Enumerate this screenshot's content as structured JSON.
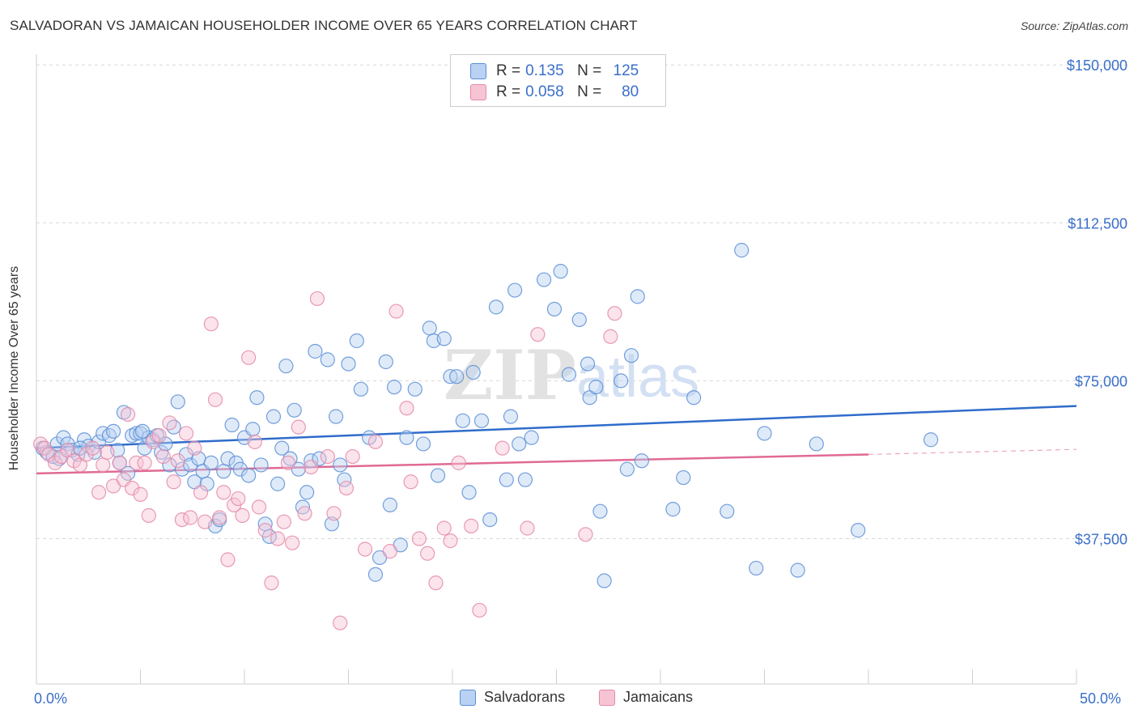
{
  "title": "SALVADORAN VS JAMAICAN HOUSEHOLDER INCOME OVER 65 YEARS CORRELATION CHART",
  "source": "Source: ZipAtlas.com",
  "watermark": {
    "zip": "ZIP",
    "atlas": "atlas"
  },
  "legend": {
    "rows": [
      {
        "r_label": "R =",
        "r_value": "0.135",
        "n_label": "N =",
        "n_value": "125"
      },
      {
        "r_label": "R =",
        "r_value": "0.058",
        "n_label": "N =",
        "n_value": "80"
      }
    ],
    "bottom": [
      "Salvadorans",
      "Jamaicans"
    ]
  },
  "colors": {
    "blue_fill": "#b9d1f2",
    "blue_stroke": "#5b8fd6",
    "blue_line": "#2f6ccb",
    "pink_fill": "#f7c4d4",
    "pink_stroke": "#e48aa8",
    "pink_line": "#e06a95",
    "axis_text": "#3a6fc9",
    "grid": "#d8d8d8"
  },
  "chart_data": {
    "type": "scatter",
    "title": "SALVADORAN VS JAMAICAN HOUSEHOLDER INCOME OVER 65 YEARS CORRELATION CHART",
    "xlabel": "",
    "ylabel": "Householder Income Over 65 years",
    "xlim": [
      0,
      50
    ],
    "ylim": [
      3000,
      153500
    ],
    "x_tick_labels": [
      "0.0%",
      "50.0%"
    ],
    "y_ticks": [
      37500,
      75000,
      112500,
      150000
    ],
    "y_tick_labels": [
      "$37,500",
      "$75,000",
      "$112,500",
      "$150,000"
    ],
    "grid": true,
    "series": [
      {
        "name": "Salvadorans",
        "r": 0.135,
        "n": 125,
        "trend": {
          "x": [
            0,
            50
          ],
          "y": [
            59000,
            69000
          ]
        },
        "points": [
          [
            0.3,
            59000
          ],
          [
            0.5,
            58000
          ],
          [
            0.8,
            57000
          ],
          [
            1.0,
            60000
          ],
          [
            1.3,
            61500
          ],
          [
            1.5,
            60000
          ],
          [
            1.7,
            58500
          ],
          [
            2.0,
            57500
          ],
          [
            2.3,
            61000
          ],
          [
            2.5,
            59500
          ],
          [
            2.8,
            58000
          ],
          [
            3.0,
            60500
          ],
          [
            3.2,
            62500
          ],
          [
            3.5,
            62000
          ],
          [
            3.7,
            63000
          ],
          [
            4.0,
            55500
          ],
          [
            4.2,
            67500
          ],
          [
            4.4,
            53000
          ],
          [
            4.6,
            62000
          ],
          [
            4.8,
            62500
          ],
          [
            5.0,
            62500
          ],
          [
            5.2,
            59000
          ],
          [
            5.4,
            61500
          ],
          [
            5.6,
            61000
          ],
          [
            5.8,
            62000
          ],
          [
            6.0,
            58000
          ],
          [
            6.2,
            60000
          ],
          [
            6.4,
            55000
          ],
          [
            6.6,
            64000
          ],
          [
            6.8,
            70000
          ],
          [
            7.0,
            54000
          ],
          [
            7.2,
            57500
          ],
          [
            7.4,
            55000
          ],
          [
            7.6,
            51000
          ],
          [
            7.8,
            56500
          ],
          [
            8.0,
            53500
          ],
          [
            8.2,
            50500
          ],
          [
            8.4,
            55500
          ],
          [
            8.6,
            40500
          ],
          [
            8.8,
            42000
          ],
          [
            9.0,
            53500
          ],
          [
            9.2,
            56500
          ],
          [
            9.4,
            64500
          ],
          [
            9.6,
            55500
          ],
          [
            9.8,
            54000
          ],
          [
            10.0,
            61500
          ],
          [
            10.2,
            52500
          ],
          [
            10.4,
            63500
          ],
          [
            10.6,
            71000
          ],
          [
            10.8,
            55000
          ],
          [
            11.0,
            41000
          ],
          [
            11.2,
            38000
          ],
          [
            11.4,
            66500
          ],
          [
            11.6,
            50500
          ],
          [
            11.8,
            59000
          ],
          [
            12.0,
            78500
          ],
          [
            12.2,
            56500
          ],
          [
            12.4,
            68000
          ],
          [
            12.6,
            54000
          ],
          [
            12.8,
            45000
          ],
          [
            13.0,
            48500
          ],
          [
            13.2,
            56000
          ],
          [
            13.4,
            82000
          ],
          [
            13.6,
            56500
          ],
          [
            14.0,
            80000
          ],
          [
            14.2,
            41000
          ],
          [
            14.4,
            66500
          ],
          [
            14.6,
            55000
          ],
          [
            14.8,
            51500
          ],
          [
            15.0,
            79000
          ],
          [
            15.4,
            84500
          ],
          [
            15.6,
            73000
          ],
          [
            16.0,
            61500
          ],
          [
            16.3,
            29000
          ],
          [
            16.5,
            33000
          ],
          [
            16.8,
            79500
          ],
          [
            17.0,
            45500
          ],
          [
            17.2,
            73500
          ],
          [
            17.5,
            36000
          ],
          [
            17.8,
            61500
          ],
          [
            18.2,
            73000
          ],
          [
            18.6,
            60000
          ],
          [
            18.9,
            87500
          ],
          [
            19.1,
            84500
          ],
          [
            19.3,
            52500
          ],
          [
            19.6,
            85000
          ],
          [
            19.9,
            76000
          ],
          [
            20.2,
            76000
          ],
          [
            20.5,
            65500
          ],
          [
            20.8,
            48500
          ],
          [
            21.0,
            77000
          ],
          [
            21.4,
            65500
          ],
          [
            21.8,
            42000
          ],
          [
            22.1,
            92500
          ],
          [
            22.6,
            51500
          ],
          [
            22.8,
            66500
          ],
          [
            23.0,
            96500
          ],
          [
            23.2,
            60000
          ],
          [
            23.5,
            51500
          ],
          [
            23.8,
            61500
          ],
          [
            24.4,
            99000
          ],
          [
            24.9,
            92000
          ],
          [
            25.2,
            101000
          ],
          [
            25.6,
            76500
          ],
          [
            26.1,
            89500
          ],
          [
            26.5,
            79000
          ],
          [
            26.6,
            71000
          ],
          [
            26.9,
            73500
          ],
          [
            27.1,
            44000
          ],
          [
            27.3,
            27500
          ],
          [
            28.1,
            75000
          ],
          [
            28.4,
            54000
          ],
          [
            28.6,
            81000
          ],
          [
            28.9,
            95000
          ],
          [
            29.1,
            56000
          ],
          [
            30.6,
            44500
          ],
          [
            31.1,
            52000
          ],
          [
            31.6,
            71000
          ],
          [
            33.2,
            44000
          ],
          [
            33.9,
            106000
          ],
          [
            34.6,
            30500
          ],
          [
            35.0,
            62500
          ],
          [
            36.6,
            30000
          ],
          [
            37.5,
            60000
          ],
          [
            39.5,
            39500
          ],
          [
            43.0,
            61000
          ],
          [
            1.1,
            56500
          ],
          [
            2.1,
            59000
          ],
          [
            3.9,
            58500
          ],
          [
            5.1,
            63000
          ]
        ]
      },
      {
        "name": "Jamaicans",
        "r": 0.058,
        "n": 80,
        "trend": {
          "x": [
            0,
            40
          ],
          "y": [
            53000,
            57500
          ]
        },
        "trend_ext": {
          "x": [
            40,
            50
          ],
          "y": [
            57500,
            58700
          ]
        },
        "points": [
          [
            0.2,
            60000
          ],
          [
            0.4,
            59000
          ],
          [
            0.6,
            57500
          ],
          [
            0.9,
            55500
          ],
          [
            1.2,
            57000
          ],
          [
            1.5,
            58500
          ],
          [
            1.8,
            56000
          ],
          [
            2.1,
            55000
          ],
          [
            2.4,
            57500
          ],
          [
            2.7,
            59000
          ],
          [
            3.0,
            48500
          ],
          [
            3.2,
            55000
          ],
          [
            3.4,
            58000
          ],
          [
            3.7,
            50000
          ],
          [
            4.0,
            55500
          ],
          [
            4.2,
            51500
          ],
          [
            4.4,
            67000
          ],
          [
            4.6,
            49500
          ],
          [
            4.8,
            55500
          ],
          [
            5.0,
            48000
          ],
          [
            5.2,
            55500
          ],
          [
            5.4,
            43000
          ],
          [
            5.6,
            60500
          ],
          [
            5.9,
            62000
          ],
          [
            6.1,
            57000
          ],
          [
            6.4,
            65000
          ],
          [
            6.6,
            51000
          ],
          [
            6.8,
            56000
          ],
          [
            7.0,
            42000
          ],
          [
            7.2,
            62500
          ],
          [
            7.4,
            42500
          ],
          [
            7.6,
            59000
          ],
          [
            7.9,
            48500
          ],
          [
            8.1,
            41500
          ],
          [
            8.4,
            88500
          ],
          [
            8.6,
            70500
          ],
          [
            8.8,
            42500
          ],
          [
            9.0,
            48500
          ],
          [
            9.2,
            32500
          ],
          [
            9.5,
            45500
          ],
          [
            9.7,
            47000
          ],
          [
            9.9,
            43000
          ],
          [
            10.2,
            80500
          ],
          [
            10.5,
            60500
          ],
          [
            10.7,
            45000
          ],
          [
            11.0,
            39500
          ],
          [
            11.3,
            27000
          ],
          [
            11.6,
            37500
          ],
          [
            11.9,
            41500
          ],
          [
            12.1,
            55500
          ],
          [
            12.3,
            36500
          ],
          [
            12.6,
            64000
          ],
          [
            12.9,
            43500
          ],
          [
            13.2,
            54500
          ],
          [
            13.5,
            94500
          ],
          [
            14.0,
            57000
          ],
          [
            14.3,
            43500
          ],
          [
            14.6,
            17500
          ],
          [
            14.9,
            49500
          ],
          [
            15.2,
            57000
          ],
          [
            15.8,
            35000
          ],
          [
            16.3,
            60500
          ],
          [
            17.0,
            34500
          ],
          [
            17.3,
            91500
          ],
          [
            17.8,
            68500
          ],
          [
            18.0,
            51000
          ],
          [
            18.4,
            37500
          ],
          [
            18.8,
            34000
          ],
          [
            19.2,
            27000
          ],
          [
            19.6,
            40000
          ],
          [
            19.9,
            37000
          ],
          [
            20.3,
            55500
          ],
          [
            20.9,
            40500
          ],
          [
            21.3,
            20500
          ],
          [
            22.4,
            59000
          ],
          [
            23.6,
            40000
          ],
          [
            24.1,
            86000
          ],
          [
            26.4,
            38500
          ],
          [
            27.6,
            85500
          ],
          [
            27.8,
            91000
          ]
        ]
      }
    ]
  }
}
